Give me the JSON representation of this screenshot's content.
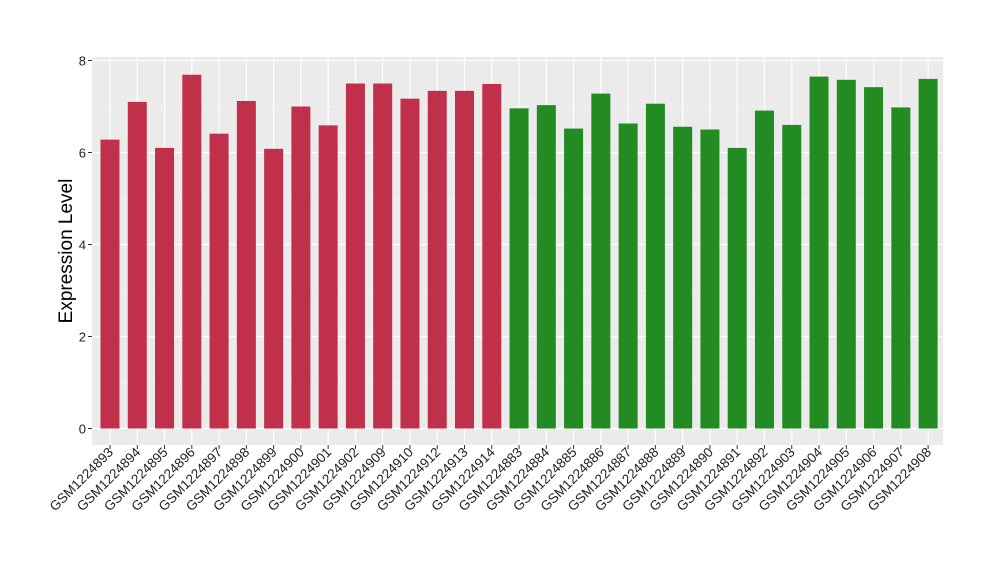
{
  "chart_data": {
    "type": "bar",
    "ylabel": "Expression Level",
    "xlabel": "",
    "ylim": [
      0,
      8
    ],
    "y_ticks": [
      "0",
      "2",
      "4",
      "6",
      "8"
    ],
    "grid": true,
    "panel_color": "#EBEBEB",
    "colors": {
      "group_red": "#C0304A",
      "group_green": "#228B22"
    },
    "categories": [
      "GSM1224893",
      "GSM1224894",
      "GSM1224895",
      "GSM1224896",
      "GSM1224897",
      "GSM1224898",
      "GSM1224899",
      "GSM1224900",
      "GSM1224901",
      "GSM1224902",
      "GSM1224909",
      "GSM1224910",
      "GSM1224912",
      "GSM1224913",
      "GSM1224914",
      "GSM1224883",
      "GSM1224884",
      "GSM1224885",
      "GSM1224886",
      "GSM1224887",
      "GSM1224888",
      "GSM1224889",
      "GSM1224890",
      "GSM1224891",
      "GSM1224892",
      "GSM1224903",
      "GSM1224904",
      "GSM1224905",
      "GSM1224906",
      "GSM1224907",
      "GSM1224908"
    ],
    "values": [
      6.28,
      7.1,
      6.1,
      7.69,
      6.41,
      7.12,
      6.08,
      7.0,
      6.59,
      7.5,
      7.5,
      7.17,
      7.34,
      7.34,
      7.49,
      6.96,
      7.03,
      6.52,
      7.28,
      6.63,
      7.06,
      6.56,
      6.5,
      6.1,
      6.91,
      6.6,
      7.65,
      7.58,
      7.42,
      6.98,
      7.6
    ],
    "bar_colors": [
      "#C0304A",
      "#C0304A",
      "#C0304A",
      "#C0304A",
      "#C0304A",
      "#C0304A",
      "#C0304A",
      "#C0304A",
      "#C0304A",
      "#C0304A",
      "#C0304A",
      "#C0304A",
      "#C0304A",
      "#C0304A",
      "#C0304A",
      "#228B22",
      "#228B22",
      "#228B22",
      "#228B22",
      "#228B22",
      "#228B22",
      "#228B22",
      "#228B22",
      "#228B22",
      "#228B22",
      "#228B22",
      "#228B22",
      "#228B22",
      "#228B22",
      "#228B22",
      "#228B22"
    ]
  }
}
